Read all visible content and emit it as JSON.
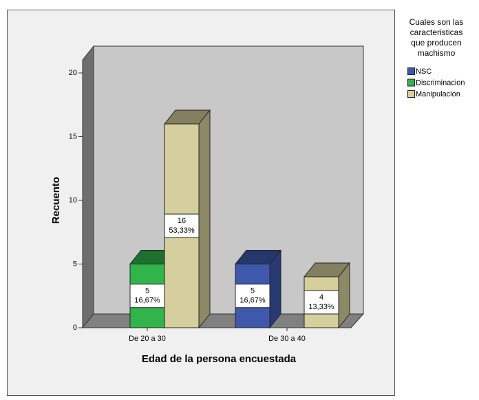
{
  "chart_data": {
    "type": "bar3d",
    "x_label": "Edad de  la persona encuestada",
    "y_label": "Recuento",
    "legend_title": [
      "Cuales son las",
      "caracteristicas",
      "que producen",
      "machismo"
    ],
    "categories": [
      "De 20 a 30",
      "De 30 a 40"
    ],
    "series": [
      {
        "name": "NSC",
        "color": "#3e58ac",
        "values": [
          null,
          5
        ],
        "percent_labels": [
          null,
          "16,67%"
        ]
      },
      {
        "name": "Discriminacion",
        "color": "#31b44b",
        "values": [
          5,
          null
        ],
        "percent_labels": [
          "16,67%",
          null
        ]
      },
      {
        "name": "Manipulacion",
        "color": "#d4cf9c",
        "values": [
          16,
          4
        ],
        "percent_labels": [
          "53,33%",
          "13,33%"
        ]
      }
    ],
    "ylim": [
      0,
      20
    ],
    "yticks": [
      0,
      5,
      10,
      15,
      20
    ],
    "grid": false,
    "legend": "right"
  }
}
